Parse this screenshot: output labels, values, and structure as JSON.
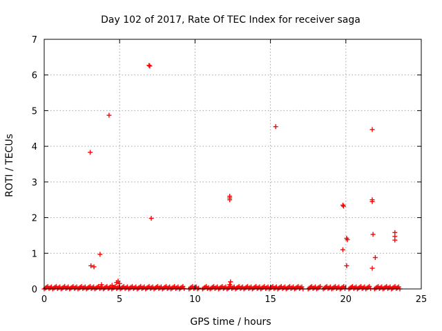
{
  "chart_data": {
    "type": "scatter",
    "title": "Day 102 of 2017, Rate Of TEC Index for receiver saga",
    "xlabel": "GPS time / hours",
    "ylabel": "ROTI / TECUs",
    "xlim": [
      0,
      25
    ],
    "ylim": [
      0,
      7
    ],
    "xticks": [
      0,
      5,
      10,
      15,
      20,
      25
    ],
    "yticks": [
      0,
      1,
      2,
      3,
      4,
      5,
      6,
      7
    ],
    "xtick_labels": [
      "0",
      "5",
      "10",
      "15",
      "20",
      "25"
    ],
    "ytick_labels": [
      "0",
      "1",
      "2",
      "3",
      "4",
      "5",
      "6",
      "7"
    ],
    "grid": true,
    "marker": "+",
    "color": "#ff0000",
    "series": [
      {
        "name": "ROTI",
        "points": [
          [
            3.05,
            3.83
          ],
          [
            3.1,
            0.65
          ],
          [
            3.3,
            0.62
          ],
          [
            3.7,
            0.97
          ],
          [
            4.3,
            4.87
          ],
          [
            6.95,
            6.27
          ],
          [
            7.0,
            6.25
          ],
          [
            7.1,
            1.98
          ],
          [
            12.3,
            2.6
          ],
          [
            12.3,
            2.55
          ],
          [
            12.3,
            2.5
          ],
          [
            12.35,
            0.2
          ],
          [
            15.35,
            4.55
          ],
          [
            19.8,
            2.35
          ],
          [
            19.85,
            2.32
          ],
          [
            19.8,
            1.1
          ],
          [
            20.05,
            1.42
          ],
          [
            20.1,
            1.38
          ],
          [
            20.05,
            0.65
          ],
          [
            21.75,
            4.47
          ],
          [
            21.75,
            2.5
          ],
          [
            21.75,
            2.45
          ],
          [
            21.8,
            1.53
          ],
          [
            21.75,
            0.58
          ],
          [
            21.95,
            0.88
          ],
          [
            23.25,
            1.58
          ],
          [
            23.25,
            1.47
          ],
          [
            23.25,
            1.37
          ],
          [
            4.8,
            0.18
          ],
          [
            4.9,
            0.22
          ],
          [
            5.0,
            0.15
          ],
          [
            3.8,
            0.12
          ],
          [
            4.5,
            0.1
          ],
          [
            12.3,
            0.12
          ]
        ],
        "baseline": {
          "y_range": [
            0,
            0.07
          ],
          "segments": [
            [
              0,
              9.3
            ],
            [
              9.6,
              10.3
            ],
            [
              10.5,
              10.9
            ],
            [
              11.0,
              17.2
            ],
            [
              17.5,
              18.3
            ],
            [
              18.5,
              20.0
            ],
            [
              20.2,
              21.7
            ],
            [
              21.9,
              23.6
            ]
          ]
        }
      }
    ]
  }
}
